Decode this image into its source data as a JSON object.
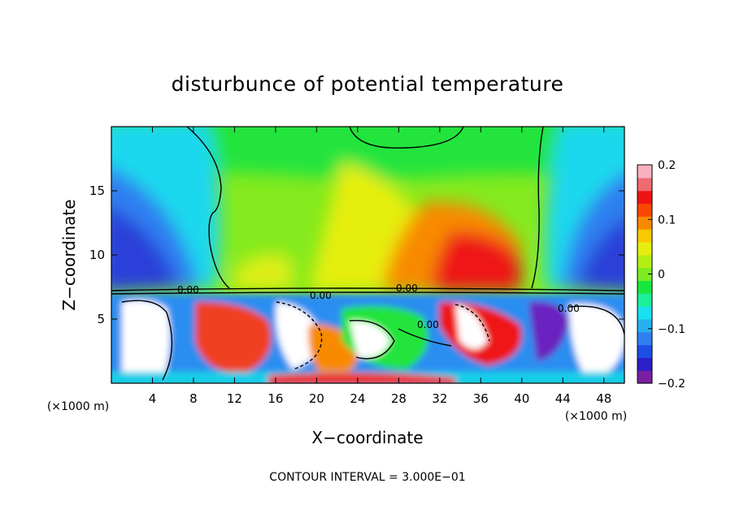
{
  "chart_data": {
    "type": "heatmap",
    "title": "disturbunce of potential temperature",
    "xlabel": "X−coordinate",
    "ylabel": "Z−coordinate",
    "x_unit": "(×1000 m)",
    "y_unit": "(×1000 m)",
    "xlim": [
      0,
      50
    ],
    "ylim": [
      0,
      20
    ],
    "x_ticks": [
      4,
      8,
      12,
      16,
      20,
      24,
      28,
      32,
      36,
      40,
      44,
      48
    ],
    "y_ticks": [
      5,
      10,
      15
    ],
    "colorbar": {
      "min": -0.2,
      "max": 0.2,
      "tick_values": [
        0.2,
        0.1,
        0,
        -0.1,
        -0.2
      ],
      "tick_labels": [
        "0.2",
        "0.1",
        "0",
        "−0.1",
        "−0.2"
      ],
      "colors": [
        "#7b1fa2",
        "#2a1fc8",
        "#1e4ee8",
        "#2e7ff0",
        "#26b0f0",
        "#19e0ee",
        "#1cee9a",
        "#18e640",
        "#7cec22",
        "#b4ee14",
        "#e6ee10",
        "#f8c800",
        "#f88a00",
        "#f84800",
        "#ee1414",
        "#f06a72",
        "#f7b0c0"
      ]
    },
    "contour_labels": [
      "0.00",
      "0.00",
      "0.00",
      "0.00",
      "0.00"
    ],
    "contour_interval_label": "CONTOUR INTERVAL = 3.000E−01",
    "grid": false
  }
}
